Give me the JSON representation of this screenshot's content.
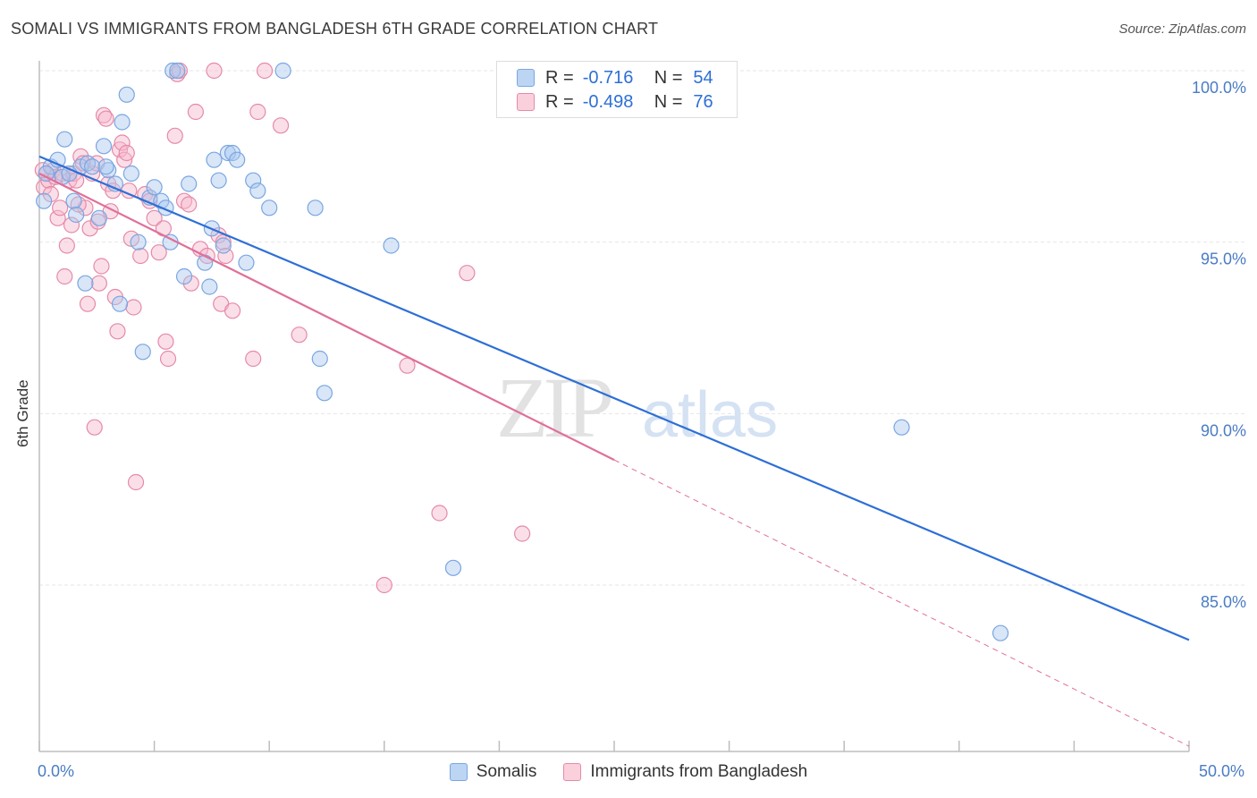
{
  "header": {
    "title": "SOMALI VS IMMIGRANTS FROM BANGLADESH 6TH GRADE CORRELATION CHART",
    "source": "Source: ZipAtlas.com"
  },
  "watermark": {
    "zip": "ZIP",
    "atlas": "atlas"
  },
  "stats": {
    "somali": {
      "r_label": "R =",
      "r_value": "-0.716",
      "n_label": "N =",
      "n_value": "54",
      "color": "#a9c8f0"
    },
    "bangladesh": {
      "r_label": "R =",
      "r_value": "-0.498",
      "n_label": "N =",
      "n_value": "76",
      "color": "#f6b8cb"
    }
  },
  "legend": {
    "somali": "Somalis",
    "bangladesh": "Immigrants from Bangladesh"
  },
  "x_axis": {
    "min_label": "0.0%",
    "max_label": "50.0%"
  },
  "chart_data": {
    "type": "scatter",
    "title": "SOMALI VS IMMIGRANTS FROM BANGLADESH 6TH GRADE CORRELATION CHART",
    "xlabel": "",
    "ylabel": "6th Grade",
    "xlim": [
      0,
      50
    ],
    "ylim": [
      80.5,
      100.8
    ],
    "y_ticks": [
      {
        "value": 100,
        "label": "100.0%"
      },
      {
        "value": 95,
        "label": "95.0%"
      },
      {
        "value": 90,
        "label": "90.0%"
      },
      {
        "value": 85,
        "label": "85.0%"
      }
    ],
    "grid": true,
    "series": [
      {
        "name": "Somalis",
        "color": "#a9c8f0",
        "stroke": "#7aa6e0",
        "line_color": "#2d6fd6",
        "trend": {
          "x": [
            0,
            50
          ],
          "y": [
            97.5,
            83.4
          ],
          "dashed_from": null
        },
        "points": [
          [
            0.2,
            96.2
          ],
          [
            0.5,
            97.2
          ],
          [
            0.8,
            97.4
          ],
          [
            1.0,
            96.9
          ],
          [
            1.1,
            98.0
          ],
          [
            1.5,
            96.2
          ],
          [
            1.6,
            95.8
          ],
          [
            1.8,
            97.2
          ],
          [
            2.0,
            93.8
          ],
          [
            2.1,
            97.3
          ],
          [
            2.3,
            97.2
          ],
          [
            2.6,
            95.7
          ],
          [
            2.8,
            97.8
          ],
          [
            3.0,
            97.1
          ],
          [
            3.3,
            96.7
          ],
          [
            3.6,
            98.5
          ],
          [
            3.8,
            99.3
          ],
          [
            4.0,
            97.0
          ],
          [
            4.3,
            95.0
          ],
          [
            4.5,
            91.8
          ],
          [
            4.8,
            96.3
          ],
          [
            5.0,
            96.6
          ],
          [
            5.3,
            96.2
          ],
          [
            5.5,
            96.0
          ],
          [
            5.7,
            95.0
          ],
          [
            5.8,
            100.0
          ],
          [
            6.0,
            100.0
          ],
          [
            6.3,
            94.0
          ],
          [
            6.5,
            96.7
          ],
          [
            7.2,
            94.4
          ],
          [
            7.4,
            93.7
          ],
          [
            7.5,
            95.4
          ],
          [
            7.6,
            97.4
          ],
          [
            7.8,
            96.8
          ],
          [
            8.0,
            94.9
          ],
          [
            8.2,
            97.6
          ],
          [
            8.4,
            97.6
          ],
          [
            8.6,
            97.4
          ],
          [
            9.0,
            94.4
          ],
          [
            9.3,
            96.8
          ],
          [
            9.5,
            96.5
          ],
          [
            10.0,
            96.0
          ],
          [
            10.6,
            100.0
          ],
          [
            12.0,
            96.0
          ],
          [
            12.2,
            91.6
          ],
          [
            12.4,
            90.6
          ],
          [
            15.3,
            94.9
          ],
          [
            18.0,
            85.5
          ],
          [
            37.5,
            89.6
          ],
          [
            41.8,
            83.6
          ],
          [
            3.5,
            93.2
          ],
          [
            2.9,
            97.2
          ],
          [
            0.3,
            97.0
          ],
          [
            1.3,
            97.0
          ]
        ]
      },
      {
        "name": "Immigrants from Bangladesh",
        "color": "#f6b8cb",
        "stroke": "#e58aa8",
        "line_color": "#e06f99",
        "trend": {
          "x": [
            0,
            50
          ],
          "y": [
            97.0,
            80.3
          ],
          "dashed_from": 25
        },
        "points": [
          [
            0.2,
            96.6
          ],
          [
            0.3,
            97.0
          ],
          [
            0.4,
            96.8
          ],
          [
            0.5,
            96.4
          ],
          [
            0.6,
            97.1
          ],
          [
            0.7,
            96.9
          ],
          [
            0.8,
            95.7
          ],
          [
            0.9,
            96.0
          ],
          [
            1.0,
            97.0
          ],
          [
            1.1,
            94.0
          ],
          [
            1.2,
            94.9
          ],
          [
            1.3,
            96.8
          ],
          [
            1.4,
            95.5
          ],
          [
            1.5,
            97.0
          ],
          [
            1.6,
            96.8
          ],
          [
            1.8,
            97.5
          ],
          [
            1.9,
            97.3
          ],
          [
            2.0,
            96.0
          ],
          [
            2.1,
            93.2
          ],
          [
            2.2,
            95.4
          ],
          [
            2.3,
            97.0
          ],
          [
            2.4,
            89.6
          ],
          [
            2.5,
            97.3
          ],
          [
            2.6,
            93.8
          ],
          [
            2.7,
            94.3
          ],
          [
            2.8,
            98.7
          ],
          [
            2.9,
            98.6
          ],
          [
            3.0,
            96.7
          ],
          [
            3.1,
            95.9
          ],
          [
            3.2,
            96.5
          ],
          [
            3.3,
            93.4
          ],
          [
            3.4,
            92.4
          ],
          [
            3.5,
            97.7
          ],
          [
            3.6,
            97.9
          ],
          [
            3.7,
            97.4
          ],
          [
            3.8,
            97.6
          ],
          [
            3.9,
            96.5
          ],
          [
            4.0,
            95.1
          ],
          [
            4.1,
            93.1
          ],
          [
            4.2,
            88.0
          ],
          [
            4.4,
            94.6
          ],
          [
            4.6,
            96.4
          ],
          [
            4.8,
            96.2
          ],
          [
            5.0,
            95.7
          ],
          [
            5.2,
            94.7
          ],
          [
            5.4,
            95.4
          ],
          [
            5.5,
            92.1
          ],
          [
            5.6,
            91.6
          ],
          [
            5.9,
            98.1
          ],
          [
            6.0,
            99.9
          ],
          [
            6.1,
            100.0
          ],
          [
            6.3,
            96.2
          ],
          [
            6.5,
            96.1
          ],
          [
            6.6,
            93.8
          ],
          [
            6.8,
            98.8
          ],
          [
            7.0,
            94.8
          ],
          [
            7.3,
            94.6
          ],
          [
            7.6,
            100.0
          ],
          [
            7.8,
            95.2
          ],
          [
            7.9,
            93.2
          ],
          [
            8.0,
            95.0
          ],
          [
            8.1,
            94.6
          ],
          [
            8.4,
            93.0
          ],
          [
            9.3,
            91.6
          ],
          [
            9.5,
            98.8
          ],
          [
            9.8,
            100.0
          ],
          [
            10.5,
            98.4
          ],
          [
            11.3,
            92.3
          ],
          [
            15.0,
            85.0
          ],
          [
            16.0,
            91.4
          ],
          [
            17.4,
            87.1
          ],
          [
            18.6,
            94.1
          ],
          [
            21.0,
            86.5
          ],
          [
            0.15,
            97.1
          ],
          [
            1.7,
            96.1
          ],
          [
            2.55,
            95.6
          ]
        ]
      }
    ]
  }
}
